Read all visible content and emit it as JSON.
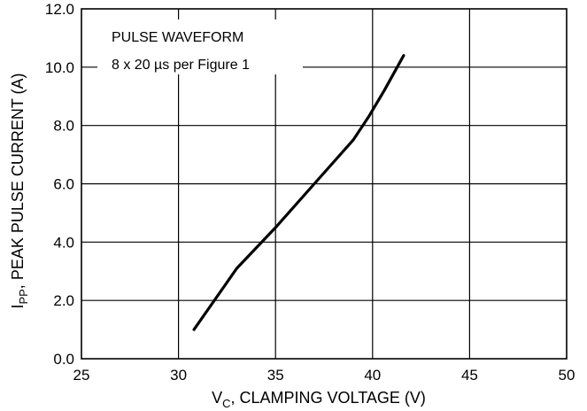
{
  "chart_data": {
    "type": "line",
    "xlabel": "V",
    "xlabel_sub": "C",
    "xlabel_rest": ", CLAMPING VOLTAGE (V)",
    "ylabel": "I",
    "ylabel_sub": "PP",
    "ylabel_rest": ", PEAK PULSE CURRENT (A)",
    "xlim": [
      25,
      50
    ],
    "ylim": [
      0,
      12
    ],
    "xticks": [
      25,
      30,
      35,
      40,
      45,
      50
    ],
    "xtick_labels": [
      "25",
      "30",
      "35",
      "40",
      "45",
      "50"
    ],
    "yticks": [
      0,
      2,
      4,
      6,
      8,
      10,
      12
    ],
    "ytick_labels": [
      "0.0",
      "2.0",
      "4.0",
      "6.0",
      "8.0",
      "10.0",
      "12.0"
    ],
    "grid": true,
    "annotation_lines": [
      "PULSE WAVEFORM",
      "8 x 20 µs per Figure 1"
    ],
    "series": [
      {
        "color": "#000000",
        "x": [
          30.8,
          33.0,
          35.0,
          37.0,
          39.0,
          39.8,
          40.6,
          41.6
        ],
        "y": [
          1.0,
          3.1,
          4.5,
          6.0,
          7.5,
          8.3,
          9.2,
          10.4
        ]
      }
    ]
  }
}
